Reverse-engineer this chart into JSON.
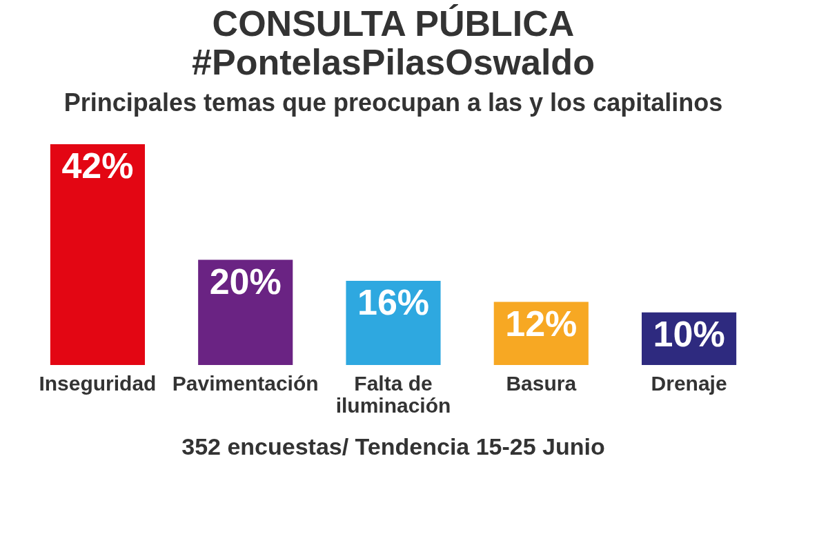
{
  "chart_data": {
    "type": "bar",
    "title": "CONSULTA PÚBLICA\n#PontelasPilasOswaldo",
    "subtitle": "Principales temas que preocupan a las y los capitalinos",
    "categories": [
      "Inseguridad",
      "Pavimentación",
      "Falta de iluminación",
      "Basura",
      "Drenaje"
    ],
    "values": [
      42,
      20,
      16,
      12,
      10
    ],
    "colors": [
      "#e30613",
      "#6a2383",
      "#2ea8e0",
      "#f7a823",
      "#2e2a7f"
    ],
    "value_labels": [
      "42%",
      "20%",
      "16%",
      "12%",
      "10%"
    ],
    "annotations": [
      "352 encuestas/ Tendencia 15-25 Junio"
    ]
  }
}
